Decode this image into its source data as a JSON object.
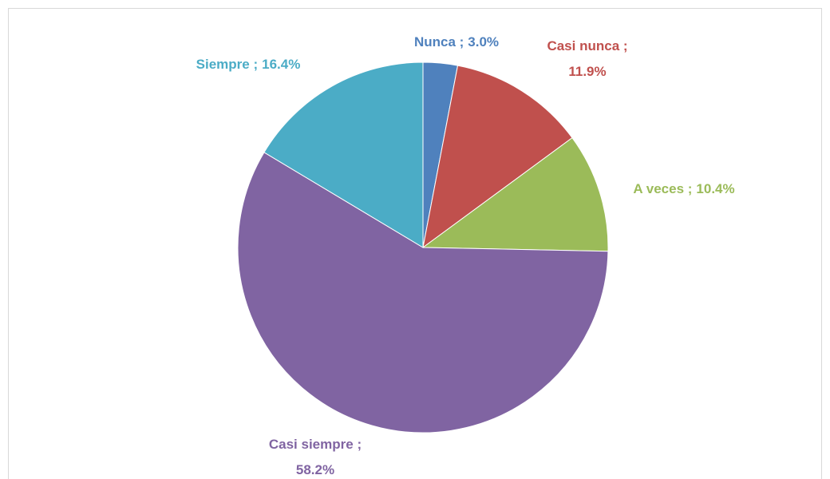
{
  "chart_data": {
    "type": "pie",
    "categories": [
      "Nunca",
      "Casi nunca",
      "A veces",
      "Casi siempre",
      "Siempre"
    ],
    "values": [
      3.0,
      11.9,
      10.4,
      58.2,
      16.4
    ],
    "value_labels": [
      "3.0%",
      "11.9%",
      "10.4%",
      "58.2%",
      "16.4%"
    ],
    "label_separator": " ;",
    "colors": [
      "#4f81bd",
      "#c0504d",
      "#9bbb59",
      "#8064a2",
      "#4bacc6"
    ]
  }
}
